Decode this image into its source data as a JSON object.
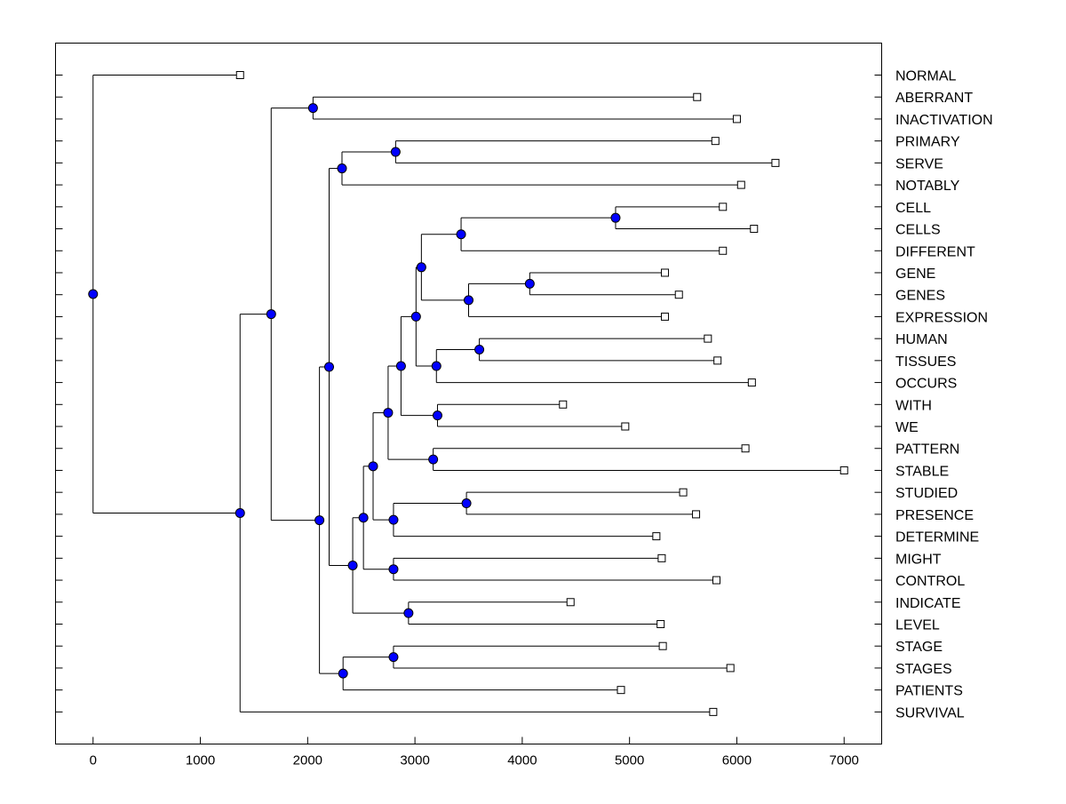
{
  "chart_data": {
    "type": "dendrogram",
    "title": "",
    "xlabel": "",
    "ylabel": "",
    "xlim": [
      -350,
      7350
    ],
    "xticks": [
      0,
      1000,
      2000,
      3000,
      4000,
      5000,
      6000,
      7000
    ],
    "xtick_labels": [
      "0",
      "1000",
      "2000",
      "3000",
      "4000",
      "5000",
      "6000",
      "7000"
    ],
    "colors": {
      "node": "#0000ff",
      "line": "#000000",
      "leaf": "#ffffff"
    },
    "leaves": [
      {
        "label": "NORMAL",
        "x": 1370
      },
      {
        "label": "ABERRANT",
        "x": 5630
      },
      {
        "label": "INACTIVATION",
        "x": 6000
      },
      {
        "label": "PRIMARY",
        "x": 5800
      },
      {
        "label": "SERVE",
        "x": 6360
      },
      {
        "label": "NOTABLY",
        "x": 6040
      },
      {
        "label": "CELL",
        "x": 5870
      },
      {
        "label": "CELLS",
        "x": 6160
      },
      {
        "label": "DIFFERENT",
        "x": 5870
      },
      {
        "label": "GENE",
        "x": 5330
      },
      {
        "label": "GENES",
        "x": 5460
      },
      {
        "label": "EXPRESSION",
        "x": 5330
      },
      {
        "label": "HUMAN",
        "x": 5730
      },
      {
        "label": "TISSUES",
        "x": 5820
      },
      {
        "label": "OCCURS",
        "x": 6140
      },
      {
        "label": "WITH",
        "x": 4380
      },
      {
        "label": "WE",
        "x": 4960
      },
      {
        "label": "PATTERN",
        "x": 6080
      },
      {
        "label": "STABLE",
        "x": 7000
      },
      {
        "label": "STUDIED",
        "x": 5500
      },
      {
        "label": "PRESENCE",
        "x": 5620
      },
      {
        "label": "DETERMINE",
        "x": 5250
      },
      {
        "label": "MIGHT",
        "x": 5300
      },
      {
        "label": "CONTROL",
        "x": 5810
      },
      {
        "label": "INDICATE",
        "x": 4450
      },
      {
        "label": "LEVEL",
        "x": 5290
      },
      {
        "label": "STAGE",
        "x": 5310
      },
      {
        "label": "STAGES",
        "x": 5940
      },
      {
        "label": "PATIENTS",
        "x": 4920
      },
      {
        "label": "SURVIVAL",
        "x": 5780
      }
    ],
    "merges": [
      {
        "id": "m_cell_cells",
        "x": 4870,
        "children": [
          "L6",
          "L7"
        ]
      },
      {
        "id": "m_cell_diff",
        "x": 3430,
        "children": [
          "m_cell_cells",
          "L8"
        ]
      },
      {
        "id": "m_gene_genes",
        "x": 4070,
        "children": [
          "L9",
          "L10"
        ]
      },
      {
        "id": "m_gene_expr",
        "x": 3500,
        "children": [
          "m_gene_genes",
          "L11"
        ]
      },
      {
        "id": "m_cell_gene",
        "x": 3060,
        "children": [
          "m_cell_diff",
          "m_gene_expr"
        ]
      },
      {
        "id": "m_human_tissues",
        "x": 3600,
        "children": [
          "L12",
          "L13"
        ]
      },
      {
        "id": "m_ht_occurs",
        "x": 3200,
        "children": [
          "m_human_tissues",
          "L14"
        ]
      },
      {
        "id": "m_cg_hto",
        "x": 3010,
        "children": [
          "m_cell_gene",
          "m_ht_occurs"
        ]
      },
      {
        "id": "m_with_we",
        "x": 3210,
        "children": [
          "L15",
          "L16"
        ]
      },
      {
        "id": "m_block_withwe",
        "x": 2870,
        "children": [
          "m_cg_hto",
          "m_with_we"
        ]
      },
      {
        "id": "m_pattern_stable",
        "x": 3170,
        "children": [
          "L17",
          "L18"
        ]
      },
      {
        "id": "m_block_ps",
        "x": 2750,
        "children": [
          "m_block_withwe",
          "m_pattern_stable"
        ]
      },
      {
        "id": "m_studied_presence",
        "x": 3480,
        "children": [
          "L19",
          "L20"
        ]
      },
      {
        "id": "m_sp_determine",
        "x": 2800,
        "children": [
          "m_studied_presence",
          "L21"
        ]
      },
      {
        "id": "m_block_spd",
        "x": 2610,
        "children": [
          "m_block_ps",
          "m_sp_determine"
        ]
      },
      {
        "id": "m_might_control",
        "x": 2800,
        "children": [
          "L22",
          "L23"
        ]
      },
      {
        "id": "m_block_mc",
        "x": 2520,
        "children": [
          "m_block_spd",
          "m_might_control"
        ]
      },
      {
        "id": "m_indicate_level",
        "x": 2940,
        "children": [
          "L24",
          "L25"
        ]
      },
      {
        "id": "m_block_il",
        "x": 2420,
        "children": [
          "m_block_mc",
          "m_indicate_level"
        ]
      },
      {
        "id": "m_primary_serve",
        "x": 2820,
        "children": [
          "L3",
          "L4"
        ]
      },
      {
        "id": "m_ps_notably",
        "x": 2320,
        "children": [
          "m_primary_serve",
          "L5"
        ]
      },
      {
        "id": "m_mid",
        "x": 2200,
        "children": [
          "m_ps_notably",
          "m_block_il"
        ]
      },
      {
        "id": "m_stage_stages",
        "x": 2800,
        "children": [
          "L26",
          "L27"
        ]
      },
      {
        "id": "m_ss_patients",
        "x": 2330,
        "children": [
          "m_stage_stages",
          "L28"
        ]
      },
      {
        "id": "m_mid_stage",
        "x": 2110,
        "children": [
          "m_mid",
          "m_ss_patients"
        ]
      },
      {
        "id": "m_aberrant_inact",
        "x": 2050,
        "children": [
          "L1",
          "L2"
        ]
      },
      {
        "id": "m_ai_mid",
        "x": 1660,
        "children": [
          "m_aberrant_inact",
          "m_mid_stage"
        ]
      },
      {
        "id": "m_survival",
        "x": 1370,
        "children": [
          "m_ai_mid",
          "L29"
        ]
      },
      {
        "id": "m_root",
        "x": 0,
        "children": [
          "L0",
          "m_survival"
        ]
      }
    ]
  }
}
